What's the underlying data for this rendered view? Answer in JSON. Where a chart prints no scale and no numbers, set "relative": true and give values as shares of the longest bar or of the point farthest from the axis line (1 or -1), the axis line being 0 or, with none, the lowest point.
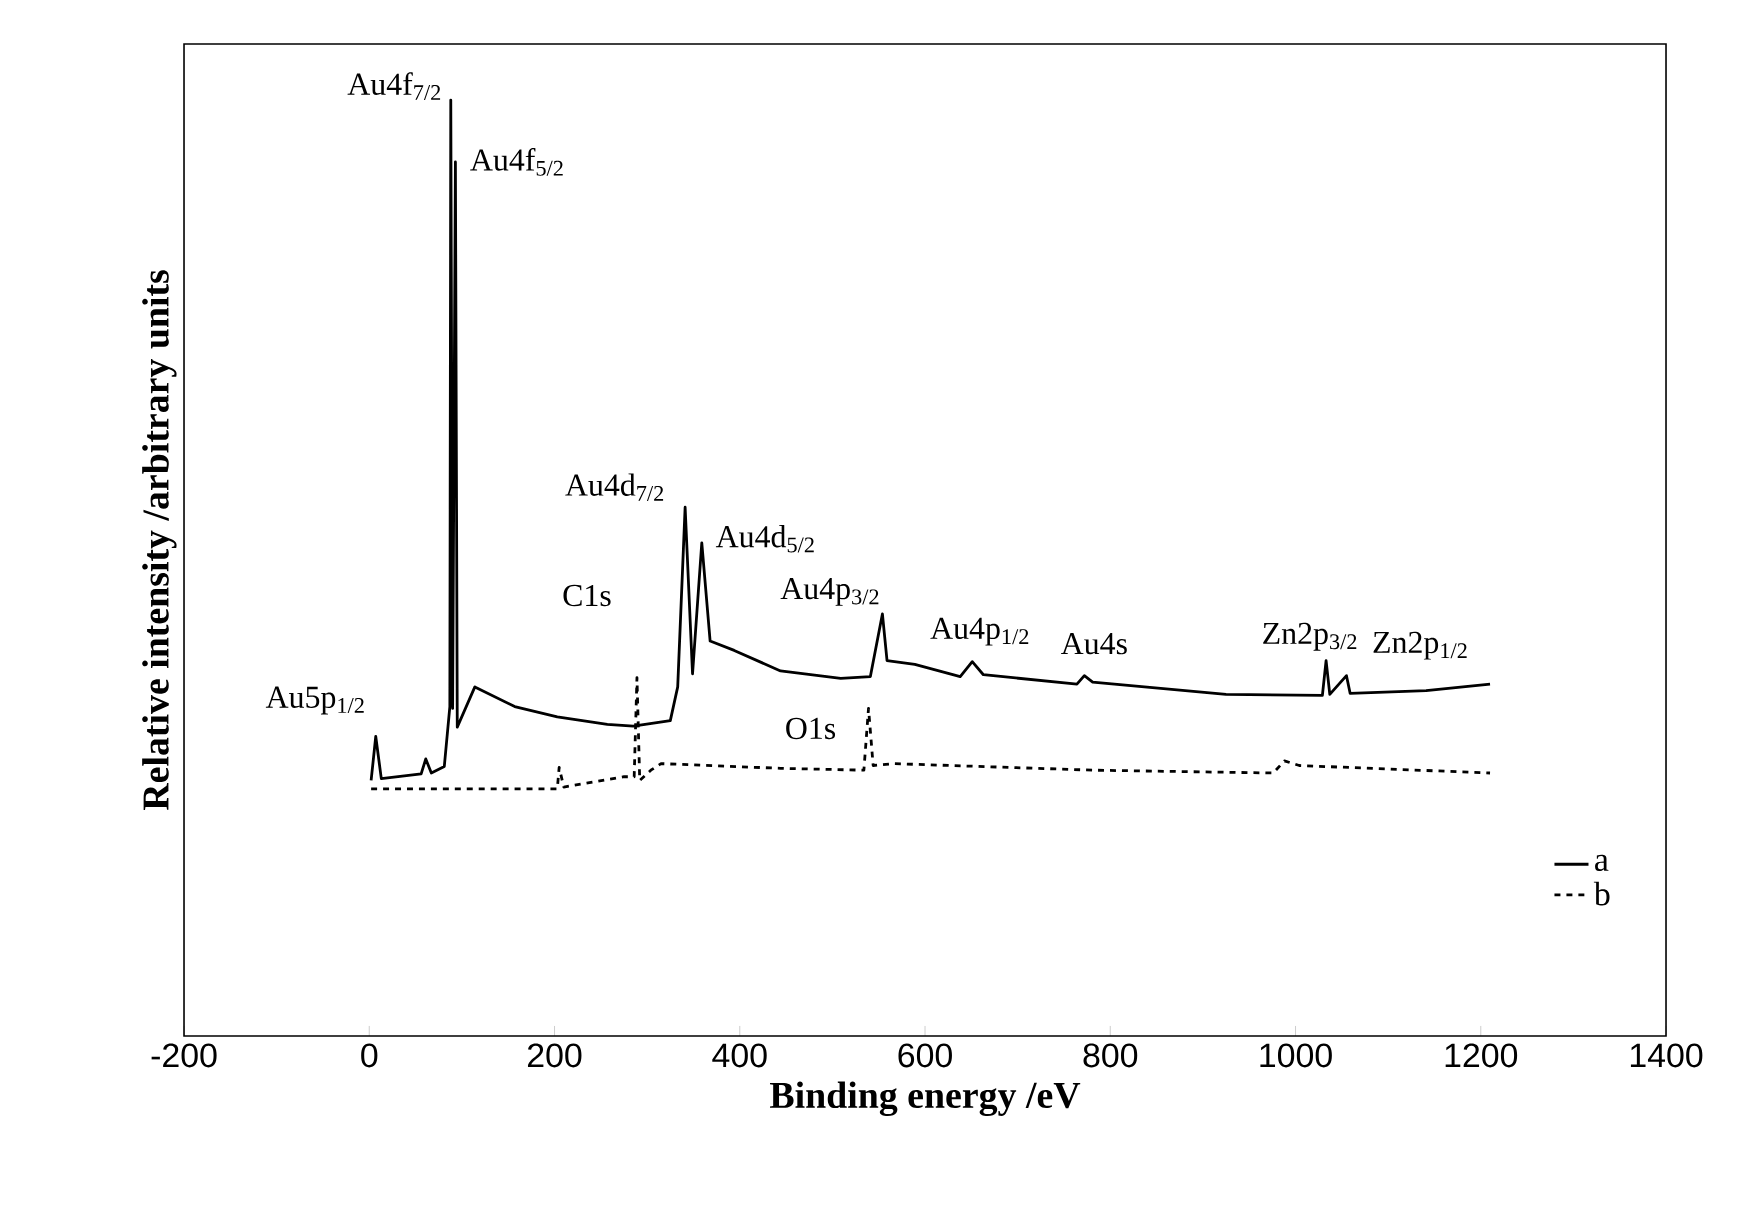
{
  "chart_data": {
    "type": "line",
    "relative": true,
    "xlabel": "Binding energy /eV",
    "ylabel": "Relative intensity /arbitrary units",
    "xlim": [
      -200,
      1400
    ],
    "xticks": [
      -200,
      0,
      200,
      400,
      600,
      800,
      1000,
      1200,
      1400
    ],
    "legend": "bottom right",
    "series": [
      {
        "name": "a",
        "color": "#000000",
        "line_style": "solid",
        "x": [
          2,
          7,
          13,
          56,
          61,
          67,
          81,
          87,
          88,
          90,
          93,
          95,
          114,
          157,
          203,
          257,
          285,
          325,
          333,
          341,
          349,
          359,
          368,
          394,
          444,
          509,
          541,
          554,
          559,
          589,
          638,
          651,
          663,
          764,
          772,
          781,
          925,
          1029,
          1033,
          1037,
          1055,
          1059,
          1141,
          1210
        ],
        "values": [
          0.273,
          0.32,
          0.275,
          0.28,
          0.296,
          0.281,
          0.288,
          0.352,
          1,
          0.35,
          0.934,
          0.33,
          0.373,
          0.352,
          0.341,
          0.333,
          0.331,
          0.337,
          0.373,
          0.565,
          0.387,
          0.527,
          0.422,
          0.412,
          0.39,
          0.382,
          0.384,
          0.451,
          0.401,
          0.397,
          0.384,
          0.4,
          0.386,
          0.376,
          0.385,
          0.378,
          0.365,
          0.364,
          0.401,
          0.365,
          0.385,
          0.366,
          0.369,
          0.376
        ]
      },
      {
        "name": "b",
        "color": "#000000",
        "line_style": "dashed",
        "x": [
          2,
          203,
          205,
          210,
          275,
          286,
          289,
          292,
          304,
          315,
          444,
          534,
          539,
          544,
          566,
          782,
          976,
          988,
          1004,
          1210
        ],
        "values": [
          0.264,
          0.264,
          0.287,
          0.266,
          0.277,
          0.277,
          0.383,
          0.273,
          0.284,
          0.291,
          0.286,
          0.284,
          0.35,
          0.289,
          0.291,
          0.284,
          0.281,
          0.294,
          0.289,
          0.281
        ]
      }
    ],
    "annotations": [
      {
        "text": "Au5p$_{1/2}$",
        "x": 7,
        "y": 0.32
      },
      {
        "text": "Au4f$_{7/2}$",
        "x": 88,
        "y": 1
      },
      {
        "text": "Au4f$_{5/2}$",
        "x": 93,
        "y": 0.934
      },
      {
        "text": "Au4d$_{7/2}$",
        "x": 341,
        "y": 0.565
      },
      {
        "text": "Au4d$_{5/2}$",
        "x": 359,
        "y": 0.527
      },
      {
        "text": "Au4p$_{3/2}$",
        "x": 554,
        "y": 0.451
      },
      {
        "text": "Au4p$_{1/2}$",
        "x": 651,
        "y": 0.4
      },
      {
        "text": "Au4s",
        "x": 772,
        "y": 0.385
      },
      {
        "text": "Zn2p$_{3/2}$",
        "x": 1033,
        "y": 0.401
      },
      {
        "text": "Zn2p$_{1/2}$",
        "x": 1055,
        "y": 0.385
      },
      {
        "text": "C1s",
        "x": 289,
        "y": 0.383
      },
      {
        "text": "O1s",
        "x": 539,
        "y": 0.35
      }
    ]
  }
}
